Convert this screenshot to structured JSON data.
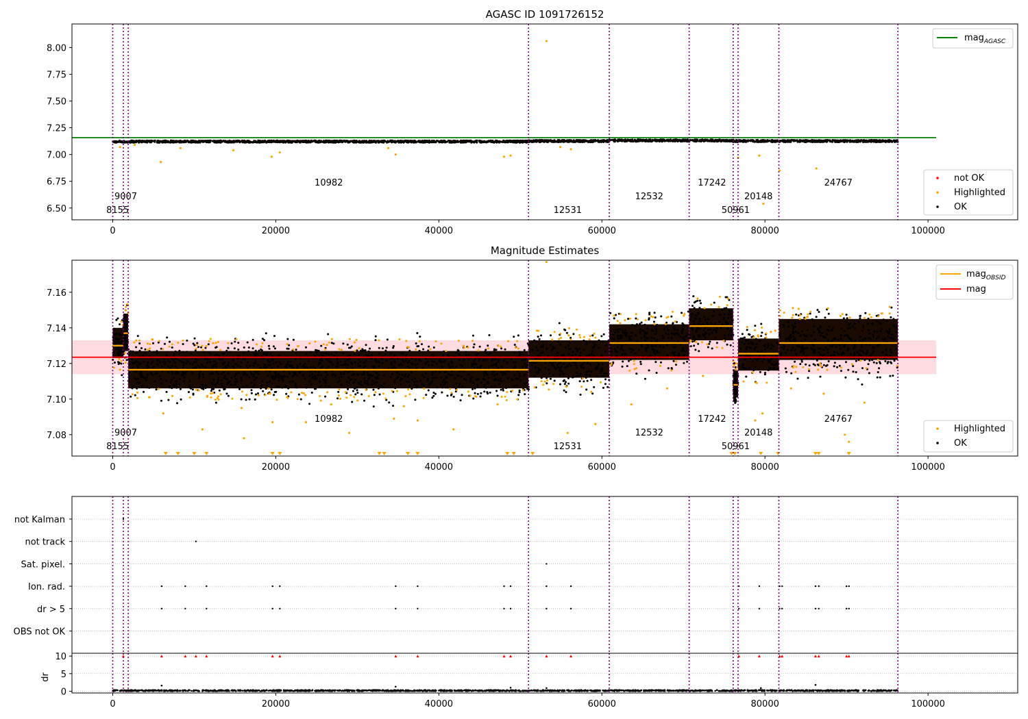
{
  "colors": {
    "ok": "#000000",
    "highlighted": "#ffa500",
    "not_ok": "#ff0000",
    "agasc_line": "#008000",
    "mag_line": "#ff0000",
    "mag_band": "#ffc0cb",
    "obsid_line": "#ffa500",
    "obs_boundary": "#800080",
    "grid": "#b0b0b0"
  },
  "obs_boundaries": [
    0,
    1300,
    1900,
    51000,
    60900,
    70700,
    76100,
    76700,
    81700,
    96300
  ],
  "obs_labels": [
    {
      "text": "8155",
      "x": 600,
      "row": 0
    },
    {
      "text": "9007",
      "x": 1600,
      "row": 1
    },
    {
      "text": "10982",
      "x": 26500,
      "row": 2
    },
    {
      "text": "12531",
      "x": 55800,
      "row": 0
    },
    {
      "text": "12532",
      "x": 65800,
      "row": 1
    },
    {
      "text": "17242",
      "x": 73500,
      "row": 2
    },
    {
      "text": "50961",
      "x": 76400,
      "row": 0
    },
    {
      "text": "20148",
      "x": 79200,
      "row": 1
    },
    {
      "text": "24767",
      "x": 89000,
      "row": 2
    }
  ],
  "chart_data": [
    {
      "type": "scatter",
      "title": "AGASC ID 1091726152",
      "xlim": [
        -5000,
        111000
      ],
      "ylim": [
        6.39,
        8.22
      ],
      "x_ticks": [
        0,
        20000,
        40000,
        60000,
        80000,
        100000
      ],
      "y_ticks": [
        6.5,
        6.75,
        7.0,
        7.25,
        7.5,
        7.75,
        8.0
      ],
      "y_tick_labels": [
        "6.50",
        "6.75",
        "7.00",
        "7.25",
        "7.50",
        "7.75",
        "8.00"
      ],
      "legend_lines": [
        {
          "label": "mag",
          "sub": "AGASC"
        }
      ],
      "legend_points": [
        "not OK",
        "Highlighted",
        "OK"
      ],
      "mag_agasc": 7.158,
      "ok_band": {
        "x": [
          0,
          96300
        ],
        "y": [
          7.11,
          7.135
        ]
      },
      "highlighted_points": [
        [
          900,
          7.07
        ],
        [
          2700,
          7.09
        ],
        [
          5900,
          6.93
        ],
        [
          8300,
          7.06
        ],
        [
          14800,
          7.04
        ],
        [
          19500,
          6.98
        ],
        [
          20500,
          7.02
        ],
        [
          33800,
          7.06
        ],
        [
          34700,
          7.0
        ],
        [
          48000,
          6.98
        ],
        [
          48800,
          6.99
        ],
        [
          53200,
          8.06
        ],
        [
          54900,
          7.07
        ],
        [
          56200,
          7.05
        ],
        [
          76700,
          6.97
        ],
        [
          79300,
          6.99
        ],
        [
          79800,
          6.54
        ],
        [
          81800,
          6.85
        ],
        [
          86300,
          6.87
        ]
      ]
    },
    {
      "type": "scatter",
      "title": "Magnitude Estimates",
      "xlim": [
        -5000,
        111000
      ],
      "ylim": [
        7.068,
        7.178
      ],
      "x_ticks": [
        0,
        20000,
        40000,
        60000,
        80000,
        100000
      ],
      "y_ticks": [
        7.08,
        7.1,
        7.12,
        7.14,
        7.16
      ],
      "y_tick_labels": [
        "7.08",
        "7.10",
        "7.12",
        "7.14",
        "7.16"
      ],
      "legend_lines": [
        {
          "label": "mag",
          "sub": "OBSID"
        },
        {
          "label": "mag",
          "sub": ""
        }
      ],
      "legend_points": [
        "Highlighted",
        "OK"
      ],
      "mag": 7.1235,
      "mag_band": [
        7.114,
        7.133
      ],
      "mag_xrange": [
        -5000,
        101000
      ],
      "segments": [
        {
          "x": [
            0,
            1300
          ],
          "mean": 7.13,
          "lo": 7.123,
          "hi": 7.14
        },
        {
          "x": [
            1300,
            1900
          ],
          "mean": 7.137,
          "lo": 7.127,
          "hi": 7.148
        },
        {
          "x": [
            1900,
            51000
          ],
          "mean": 7.1165,
          "lo": 7.106,
          "hi": 7.127
        },
        {
          "x": [
            51000,
            60900
          ],
          "mean": 7.1215,
          "lo": 7.112,
          "hi": 7.133
        },
        {
          "x": [
            60900,
            70700
          ],
          "mean": 7.1315,
          "lo": 7.122,
          "hi": 7.142
        },
        {
          "x": [
            70700,
            76100
          ],
          "mean": 7.141,
          "lo": 7.133,
          "hi": 7.151
        },
        {
          "x": [
            76100,
            76700
          ],
          "mean": 7.108,
          "lo": 7.101,
          "hi": 7.116
        },
        {
          "x": [
            76700,
            81700
          ],
          "mean": 7.1255,
          "lo": 7.116,
          "hi": 7.134
        },
        {
          "x": [
            81700,
            96300
          ],
          "mean": 7.1315,
          "lo": 7.122,
          "hi": 7.145
        }
      ],
      "highlighted_points": [
        [
          4500,
          7.101
        ],
        [
          6200,
          7.092
        ],
        [
          11000,
          7.083
        ],
        [
          15800,
          7.095
        ],
        [
          16100,
          7.078
        ],
        [
          19600,
          7.087
        ],
        [
          23700,
          7.087
        ],
        [
          26800,
          7.097
        ],
        [
          29000,
          7.081
        ],
        [
          34500,
          7.089
        ],
        [
          35700,
          7.096
        ],
        [
          37400,
          7.088
        ],
        [
          41800,
          7.083
        ],
        [
          47200,
          7.097
        ],
        [
          52800,
          7.108
        ],
        [
          55800,
          7.081
        ],
        [
          58700,
          7.104
        ],
        [
          59200,
          7.086
        ],
        [
          63600,
          7.097
        ],
        [
          68000,
          7.106
        ],
        [
          72400,
          7.113
        ],
        [
          78800,
          7.088
        ],
        [
          79700,
          7.092
        ],
        [
          83200,
          7.106
        ],
        [
          87200,
          7.103
        ],
        [
          89800,
          7.08
        ],
        [
          90300,
          7.076
        ],
        [
          92200,
          7.098
        ],
        [
          53200,
          7.177
        ]
      ],
      "clipped_low_x": [
        6500,
        8000,
        10000,
        11500,
        19600,
        20500,
        32700,
        33300,
        36200,
        37400,
        48400,
        49200,
        51500,
        75900,
        76300,
        79500,
        81600,
        86200,
        86600,
        90300
      ]
    },
    {
      "type": "scatter",
      "title": "",
      "xlim": [
        -5000,
        111000
      ],
      "x_ticks": [
        0,
        20000,
        40000,
        60000,
        80000,
        100000
      ],
      "flag_rows": [
        "not Kalman",
        "not track",
        "Sat. pixel.",
        "Ion. rad.",
        "dr > 5",
        "OBS not OK"
      ],
      "flag_points": {
        "not Kalman": [
          1300
        ],
        "not track": [
          10200
        ],
        "Sat. pixel.": [
          53200
        ],
        "Ion. rad.": [
          6000,
          8900,
          11500,
          19600,
          20500,
          34700,
          37400,
          48000,
          48800,
          53200,
          56200,
          76800,
          79300,
          81800,
          82100,
          86200,
          86600,
          90000,
          90300
        ],
        "dr > 5": [
          6000,
          8900,
          11500,
          19600,
          20500,
          34700,
          37400,
          48000,
          48800,
          53200,
          56200,
          76800,
          79300,
          81800,
          82100,
          86200,
          86600,
          90000,
          90300
        ],
        "OBS not OK": []
      },
      "dr_ylim": [
        -0.5,
        10.8
      ],
      "dr_ticks": [
        0,
        5,
        10
      ],
      "dr_tick_labels": [
        "0",
        "5",
        "10"
      ],
      "dr_label": "dr",
      "dr_clipped_x": [
        1300,
        6000,
        8900,
        10200,
        11500,
        19600,
        20500,
        34700,
        37400,
        48000,
        48800,
        53200,
        56200,
        76800,
        79300,
        81800,
        82100,
        86200,
        86600,
        90000,
        90300
      ],
      "dr_outliers": [
        [
          6000,
          1.6
        ],
        [
          34700,
          1.3
        ],
        [
          48800,
          1.0
        ],
        [
          53200,
          0.9
        ],
        [
          79500,
          0.9
        ],
        [
          86200,
          1.8
        ]
      ]
    }
  ]
}
